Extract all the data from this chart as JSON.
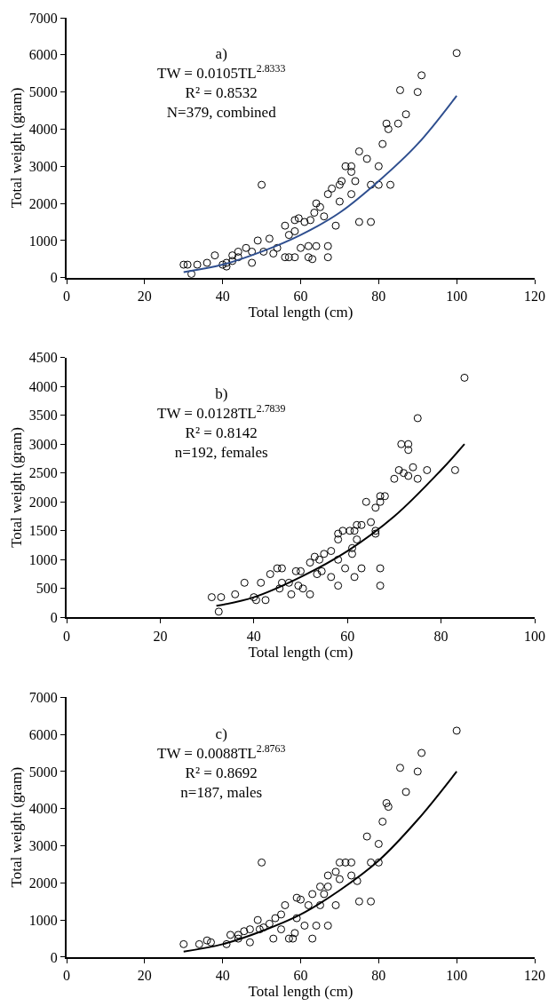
{
  "chart_data": [
    {
      "type": "scatter",
      "xlabel": "Total length (cm)",
      "ylabel": "Total weight (gram)",
      "annotations": [
        "a)",
        "TW = 0.0105TL$^{2.8333}$",
        "R² = 0.8532",
        "N=379, combined"
      ],
      "xlim": [
        0,
        120
      ],
      "xticks": [
        0,
        20,
        40,
        60,
        80,
        100,
        120
      ],
      "ylim": [
        0,
        7000
      ],
      "yticks": [
        0,
        1000,
        2000,
        3000,
        4000,
        5000,
        6000,
        7000
      ],
      "series": [
        {
          "marker": "circle",
          "color": "#000000",
          "x": [
            30,
            31,
            32,
            33.5,
            36,
            38,
            40,
            41,
            42.5,
            44,
            46,
            47.5,
            49,
            50,
            52,
            54,
            56,
            57,
            58.5,
            59.5,
            61,
            62,
            63,
            64,
            64,
            66,
            67,
            67,
            67,
            69,
            70,
            70,
            71.5,
            73,
            73,
            74,
            75,
            75,
            77,
            78,
            78,
            80,
            80,
            81,
            82,
            82.5,
            83,
            85,
            85.5,
            87,
            90,
            91,
            100,
            56,
            57,
            58.5,
            60,
            62,
            53,
            50.5,
            47.5,
            42.5,
            41,
            44,
            58.5,
            62.5,
            63.5,
            65,
            68,
            70.5,
            73
          ],
          "values": [
            350,
            350,
            100,
            350,
            400,
            600,
            350,
            300,
            450,
            550,
            800,
            400,
            1000,
            2500,
            1050,
            800,
            1400,
            1150,
            1250,
            1600,
            1500,
            550,
            500,
            850,
            2000,
            1650,
            850,
            550,
            2250,
            1400,
            2050,
            2500,
            3000,
            2850,
            2250,
            2600,
            3400,
            1500,
            3200,
            2500,
            1500,
            3000,
            2500,
            3600,
            4150,
            4000,
            2500,
            4150,
            5050,
            4400,
            5000,
            5450,
            6050,
            550,
            550,
            550,
            800,
            850,
            650,
            700,
            700,
            600,
            400,
            700,
            1550,
            1550,
            1750,
            1900,
            2400,
            2600,
            3000
          ]
        },
        {
          "type": "line",
          "line_style": "solid",
          "color": "#2f4f8f",
          "x": [
            30,
            40,
            50,
            60,
            70,
            80,
            90,
            100
          ],
          "values": [
            150,
            350,
            700,
            1150,
            1750,
            2600,
            3600,
            4900
          ]
        }
      ]
    },
    {
      "type": "scatter",
      "xlabel": "Total length (cm)",
      "ylabel": "Total weight (gram)",
      "annotations": [
        "b)",
        "TW = 0.0128TL$^{2.7839}$",
        "R² = 0.8142",
        "n=192, females"
      ],
      "xlim": [
        0,
        100
      ],
      "xticks": [
        0,
        20,
        40,
        60,
        80,
        100
      ],
      "ylim": [
        0,
        4500
      ],
      "yticks": [
        0,
        500,
        1000,
        1500,
        2000,
        2500,
        3000,
        3500,
        4000,
        4500
      ],
      "series": [
        {
          "marker": "circle",
          "color": "#000000",
          "x": [
            31,
            33,
            32.5,
            36,
            38,
            40,
            40.5,
            42.5,
            41.5,
            43.5,
            45,
            46,
            45.5,
            48,
            49,
            50,
            50.5,
            52,
            52,
            53,
            54,
            55,
            56.5,
            58,
            58,
            58,
            58,
            59,
            60.5,
            61,
            61,
            61.5,
            62,
            63,
            62,
            63,
            65,
            66,
            66,
            64,
            66,
            67,
            67,
            68,
            67,
            67,
            59.5,
            61.5,
            56.5,
            70,
            71,
            72,
            73,
            71.5,
            73,
            73,
            74,
            75,
            75,
            77,
            83,
            85,
            46,
            47.5,
            49.5,
            53.5,
            54.5
          ],
          "values": [
            350,
            350,
            100,
            400,
            600,
            350,
            300,
            300,
            600,
            750,
            850,
            850,
            500,
            400,
            800,
            800,
            500,
            400,
            950,
            1050,
            1000,
            1100,
            1150,
            550,
            1000,
            1350,
            1450,
            1500,
            1500,
            1200,
            1100,
            1500,
            1350,
            850,
            1600,
            1600,
            1650,
            1450,
            1500,
            2000,
            1900,
            2000,
            2100,
            2100,
            850,
            550,
            850,
            700,
            700,
            2400,
            2550,
            2500,
            2450,
            3000,
            3000,
            2900,
            2600,
            2400,
            3450,
            2550,
            2550,
            4150,
            600,
            600,
            550,
            750,
            800
          ]
        },
        {
          "type": "line",
          "line_style": "solid",
          "color": "#000000",
          "x": [
            32,
            40,
            50,
            60,
            70,
            80,
            85
          ],
          "values": [
            200,
            350,
            700,
            1150,
            1750,
            2550,
            3000
          ]
        }
      ]
    },
    {
      "type": "scatter",
      "xlabel": "Total length (cm)",
      "ylabel": "Total weight (gram)",
      "annotations": [
        "c)",
        "TW = 0.0088TL$^{2.8763}$",
        "R² = 0.8692",
        "n=187, males"
      ],
      "xlim": [
        0,
        120
      ],
      "xticks": [
        0,
        20,
        40,
        60,
        80,
        100,
        120
      ],
      "ylim": [
        0,
        7000
      ],
      "yticks": [
        0,
        1000,
        2000,
        3000,
        4000,
        5000,
        6000,
        7000
      ],
      "series": [
        {
          "marker": "circle",
          "color": "#000000",
          "x": [
            30,
            34,
            36,
            37,
            41,
            42,
            44,
            45.5,
            47,
            49,
            50,
            50.5,
            53,
            53.5,
            55,
            56,
            57,
            58,
            59,
            59,
            60,
            61,
            62,
            63,
            63,
            64,
            65,
            65,
            66,
            67,
            67,
            67,
            69,
            69,
            70,
            70,
            71.5,
            73,
            73,
            74.5,
            75,
            77,
            78,
            78,
            80,
            80,
            81,
            82,
            82.5,
            85.5,
            87,
            90,
            91,
            100,
            44,
            47,
            49.5,
            52,
            55,
            58.5
          ],
          "values": [
            350,
            350,
            450,
            400,
            350,
            600,
            500,
            700,
            400,
            1000,
            2550,
            800,
            500,
            1050,
            1150,
            1400,
            500,
            500,
            1050,
            1600,
            1550,
            850,
            1400,
            500,
            1700,
            850,
            1900,
            1400,
            1700,
            850,
            2200,
            1900,
            1400,
            2300,
            2550,
            2100,
            2550,
            2550,
            2200,
            2050,
            1500,
            3250,
            2550,
            1500,
            3050,
            2550,
            3650,
            4150,
            4050,
            5100,
            4450,
            5000,
            5500,
            6100,
            600,
            750,
            750,
            900,
            750,
            650
          ]
        },
        {
          "type": "line",
          "line_style": "solid",
          "color": "#000000",
          "x": [
            30,
            40,
            50,
            60,
            70,
            80,
            90,
            100
          ],
          "values": [
            150,
            350,
            700,
            1150,
            1800,
            2600,
            3700,
            5000
          ]
        }
      ]
    }
  ]
}
